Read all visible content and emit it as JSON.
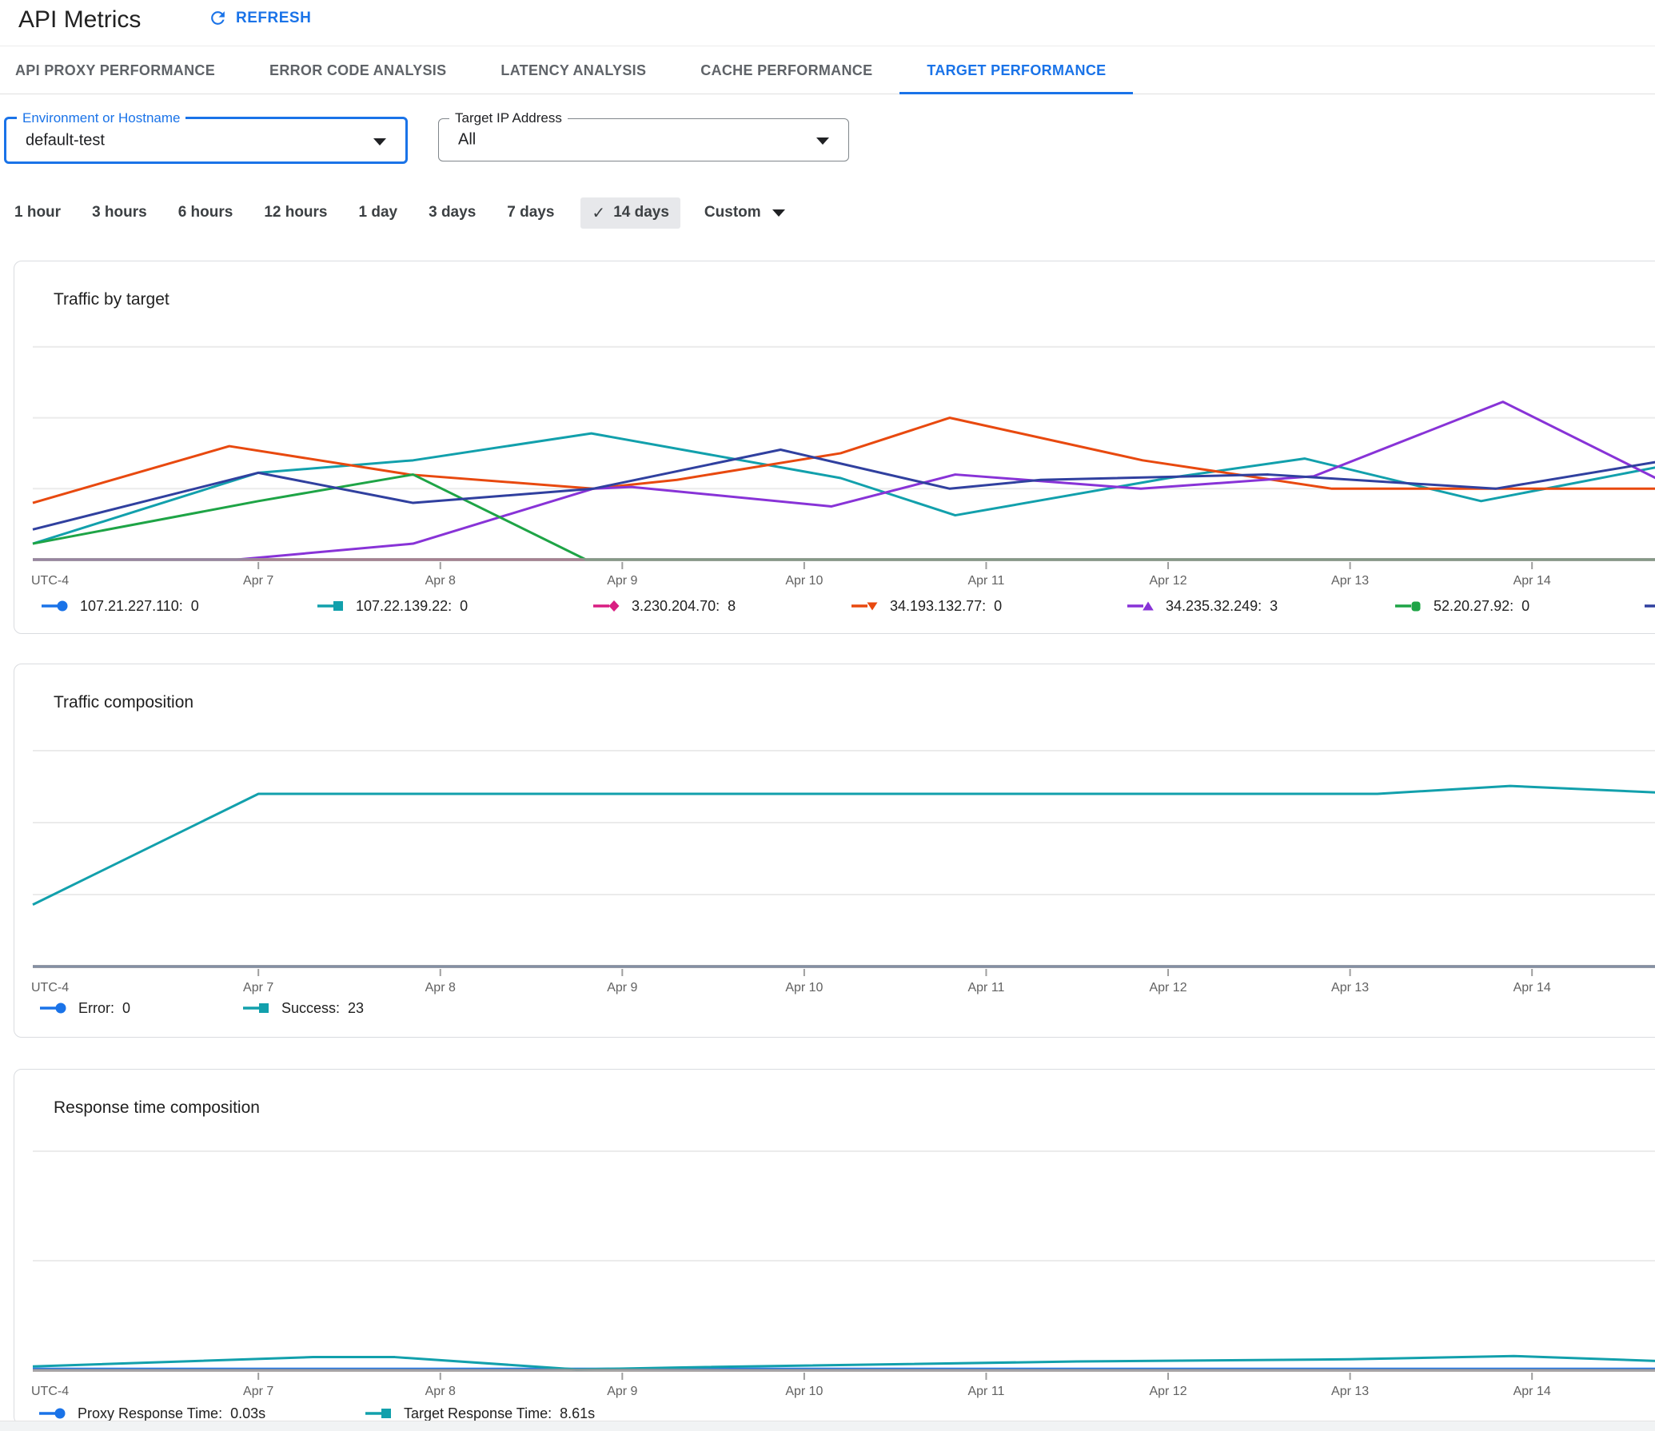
{
  "header": {
    "title": "API Metrics",
    "refresh_label": "REFRESH"
  },
  "tabs": [
    {
      "label": "API PROXY PERFORMANCE",
      "active": false
    },
    {
      "label": "ERROR CODE ANALYSIS",
      "active": false
    },
    {
      "label": "LATENCY ANALYSIS",
      "active": false
    },
    {
      "label": "CACHE PERFORMANCE",
      "active": false
    },
    {
      "label": "TARGET PERFORMANCE",
      "active": true
    }
  ],
  "filters": {
    "environment": {
      "label": "Environment or Hostname",
      "value": "default-test"
    },
    "target_ip": {
      "label": "Target IP Address",
      "value": "All"
    }
  },
  "time_range": {
    "options": [
      "1 hour",
      "3 hours",
      "6 hours",
      "12 hours",
      "1 day",
      "3 days",
      "7 days",
      "14 days"
    ],
    "selected": "14 days",
    "check_glyph": "✓",
    "custom_label": "Custom"
  },
  "x_axis": {
    "origin_label": "UTC-4",
    "tick_days": [
      7,
      8,
      9,
      10,
      11,
      12,
      13,
      14
    ],
    "tick_labels": [
      "Apr 7",
      "Apr 8",
      "Apr 9",
      "Apr 10",
      "Apr 11",
      "Apr 12",
      "Apr 13",
      "Apr 14"
    ]
  },
  "colors": {
    "accent_blue": "#1a73e8",
    "teal": "#12a0ac",
    "magenta": "#d91e82",
    "orange": "#e8490f",
    "purple": "#8833d7",
    "green": "#1ea446",
    "navy": "#30409f",
    "gridline": "#ebebeb",
    "axis": "#9b9695",
    "axis_label": "#616161"
  },
  "chart_data": [
    {
      "type": "line",
      "title": "Traffic by target",
      "y_gridlines": [
        2,
        4,
        6
      ],
      "series": [
        {
          "name": "107.21.227.110",
          "value": "0",
          "color": "#1a73e8",
          "marker": "circle",
          "points": [
            [
              5.76,
              0
            ],
            [
              14.68,
              0
            ]
          ]
        },
        {
          "name": "107.22.139.22",
          "value": "0",
          "color": "#12a0ac",
          "marker": "square",
          "points": [
            [
              5.76,
              0.45
            ],
            [
              7.0,
              2.45
            ],
            [
              7.85,
              2.8
            ],
            [
              8.83,
              3.56
            ],
            [
              10.2,
              2.3
            ],
            [
              10.83,
              1.25
            ],
            [
              12.0,
              2.3
            ],
            [
              12.75,
              2.85
            ],
            [
              13.72,
              1.65
            ],
            [
              14.68,
              2.6
            ]
          ]
        },
        {
          "name": "3.230.204.70",
          "value": "8",
          "color": "#d91e82",
          "marker": "diamond",
          "points": [
            [
              5.76,
              0
            ],
            [
              14.68,
              0
            ]
          ]
        },
        {
          "name": "34.193.132.77",
          "value": "0",
          "color": "#e8490f",
          "marker": "triangle-down",
          "points": [
            [
              5.76,
              1.6
            ],
            [
              6.84,
              3.2
            ],
            [
              7.83,
              2.4
            ],
            [
              8.84,
              2.0
            ],
            [
              9.3,
              2.25
            ],
            [
              10.2,
              3.0
            ],
            [
              10.8,
              4.0
            ],
            [
              11.86,
              2.8
            ],
            [
              12.9,
              2.0
            ],
            [
              14.68,
              2.0
            ]
          ]
        },
        {
          "name": "34.235.32.249",
          "value": "3",
          "color": "#8833d7",
          "marker": "triangle-up",
          "points": [
            [
              5.76,
              0
            ],
            [
              6.88,
              0
            ],
            [
              7.85,
              0.45
            ],
            [
              8.84,
              2.0
            ],
            [
              9.05,
              2.05
            ],
            [
              10.15,
              1.5
            ],
            [
              10.83,
              2.4
            ],
            [
              11.85,
              2.0
            ],
            [
              12.8,
              2.35
            ],
            [
              13.84,
              4.45
            ],
            [
              14.68,
              2.3
            ]
          ]
        },
        {
          "name": "52.20.27.92",
          "value": "0",
          "color": "#1ea446",
          "marker": "rounded-square",
          "points": [
            [
              5.76,
              0.45
            ],
            [
              7.0,
              1.65
            ],
            [
              7.85,
              2.4
            ],
            [
              8.8,
              0
            ],
            [
              14.68,
              0
            ]
          ]
        },
        {
          "name": "",
          "value": "",
          "color": "#30409f",
          "marker": "none",
          "points": [
            [
              5.76,
              0.85
            ],
            [
              7.0,
              2.45
            ],
            [
              7.85,
              1.6
            ],
            [
              8.84,
              2.0
            ],
            [
              9.87,
              3.1
            ],
            [
              10.8,
              2.0
            ],
            [
              11.3,
              2.25
            ],
            [
              12.55,
              2.4
            ],
            [
              13.8,
              2.0
            ],
            [
              14.68,
              2.75
            ]
          ]
        }
      ]
    },
    {
      "type": "line",
      "title": "Traffic composition",
      "y_gridlines": [
        10,
        20,
        30
      ],
      "series": [
        {
          "name": "Error",
          "value": "0",
          "color": "#1a73e8",
          "marker": "circle",
          "points": [
            [
              5.76,
              0
            ],
            [
              14.68,
              0
            ]
          ]
        },
        {
          "name": "Success",
          "value": "23",
          "color": "#12a0ac",
          "marker": "square",
          "points": [
            [
              5.76,
              8.6
            ],
            [
              7.0,
              24
            ],
            [
              13.15,
              24
            ],
            [
              13.88,
              25.1
            ],
            [
              14.68,
              24.2
            ]
          ]
        }
      ]
    },
    {
      "type": "line",
      "title": "Response time composition",
      "y_gridlines": [
        20,
        40
      ],
      "series": [
        {
          "name": "Proxy Response Time",
          "value": "0.03s",
          "color": "#1a73e8",
          "marker": "circle",
          "points": [
            [
              5.76,
              0.25
            ],
            [
              14.68,
              0.25
            ]
          ]
        },
        {
          "name": "Target Response Time",
          "value": "8.61s",
          "color": "#12a0ac",
          "marker": "square",
          "points": [
            [
              5.76,
              0.7
            ],
            [
              7.3,
              2.4
            ],
            [
              7.75,
              2.4
            ],
            [
              8.75,
              0.15
            ],
            [
              9.3,
              0.5
            ],
            [
              11.5,
              1.6
            ],
            [
              13.0,
              2.0
            ],
            [
              13.9,
              2.6
            ],
            [
              14.68,
              1.7
            ]
          ]
        }
      ]
    }
  ]
}
